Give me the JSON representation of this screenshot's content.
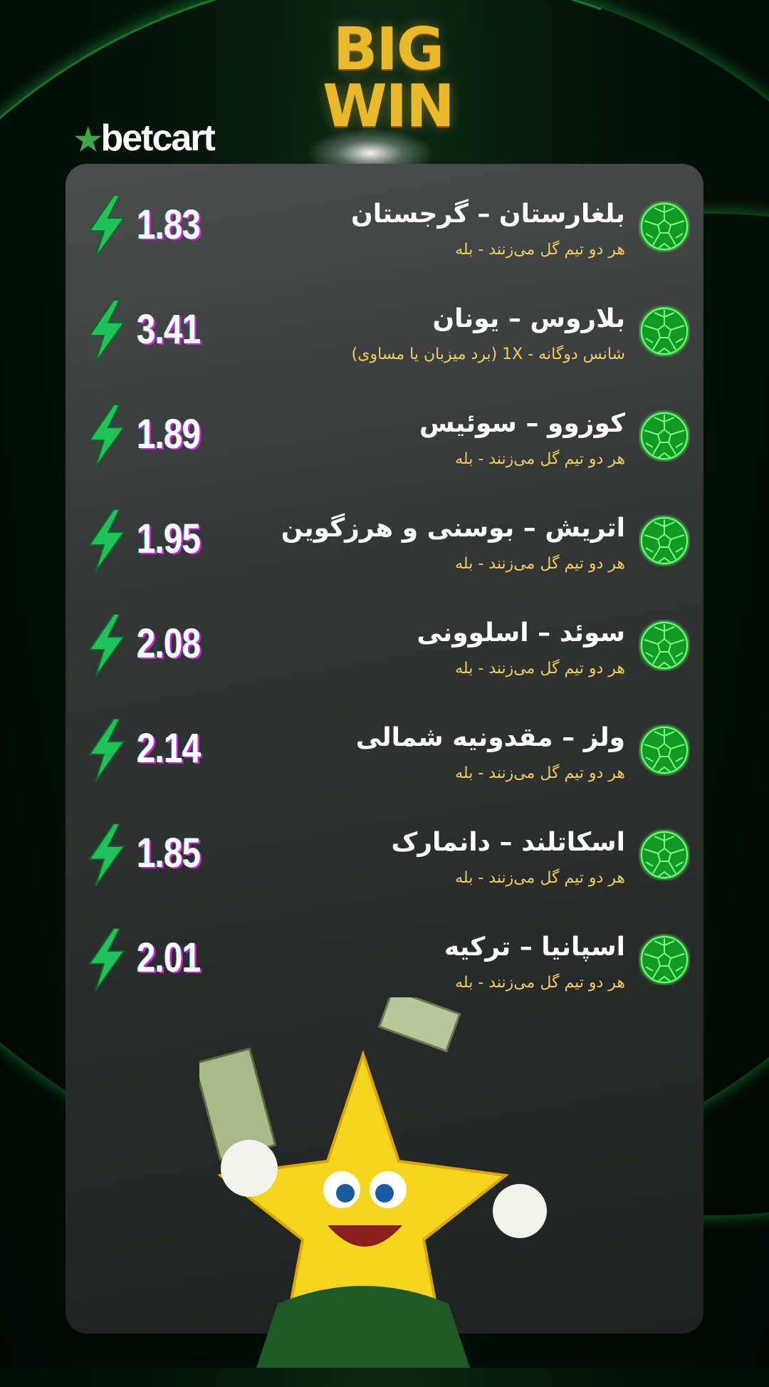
{
  "header": {
    "title_line1": "BIG",
    "title_line2": "WIN",
    "logo_text": "betcart"
  },
  "colors": {
    "accent": "#2ee04f",
    "odds": "#ffffff",
    "market": "#f2cc5c",
    "title_gold": "#e9b92a"
  },
  "bets": [
    {
      "match": "بلغارستان – گرجستان",
      "market": "هر دو تیم گل می‌زنند - بله",
      "odds": "1.83"
    },
    {
      "match": "بلاروس – یونان",
      "market": "شانس دوگانه - 1X (برد میزبان یا مساوی)",
      "odds": "3.41"
    },
    {
      "match": "کوزوو – سوئیس",
      "market": "هر دو تیم گل می‌زنند - بله",
      "odds": "1.89"
    },
    {
      "match": "اتریش – بوسنی و هرزگوین",
      "market": "هر دو تیم گل می‌زنند - بله",
      "odds": "1.95"
    },
    {
      "match": "سوئد – اسلوونی",
      "market": "هر دو تیم گل می‌زنند - بله",
      "odds": "2.08"
    },
    {
      "match": "ولز – مقدونیه شمالی",
      "market": "هر دو تیم گل می‌زنند - بله",
      "odds": "2.14"
    },
    {
      "match": "اسکاتلند – دانمارک",
      "market": "هر دو تیم گل می‌زنند - بله",
      "odds": "1.85"
    },
    {
      "match": "اسپانیا – ترکیه",
      "market": "هر دو تیم گل می‌زنند - بله",
      "odds": "2.01"
    }
  ],
  "icons": {
    "row_icon": "soccer-ball-icon",
    "odds_icon": "lightning-icon"
  }
}
